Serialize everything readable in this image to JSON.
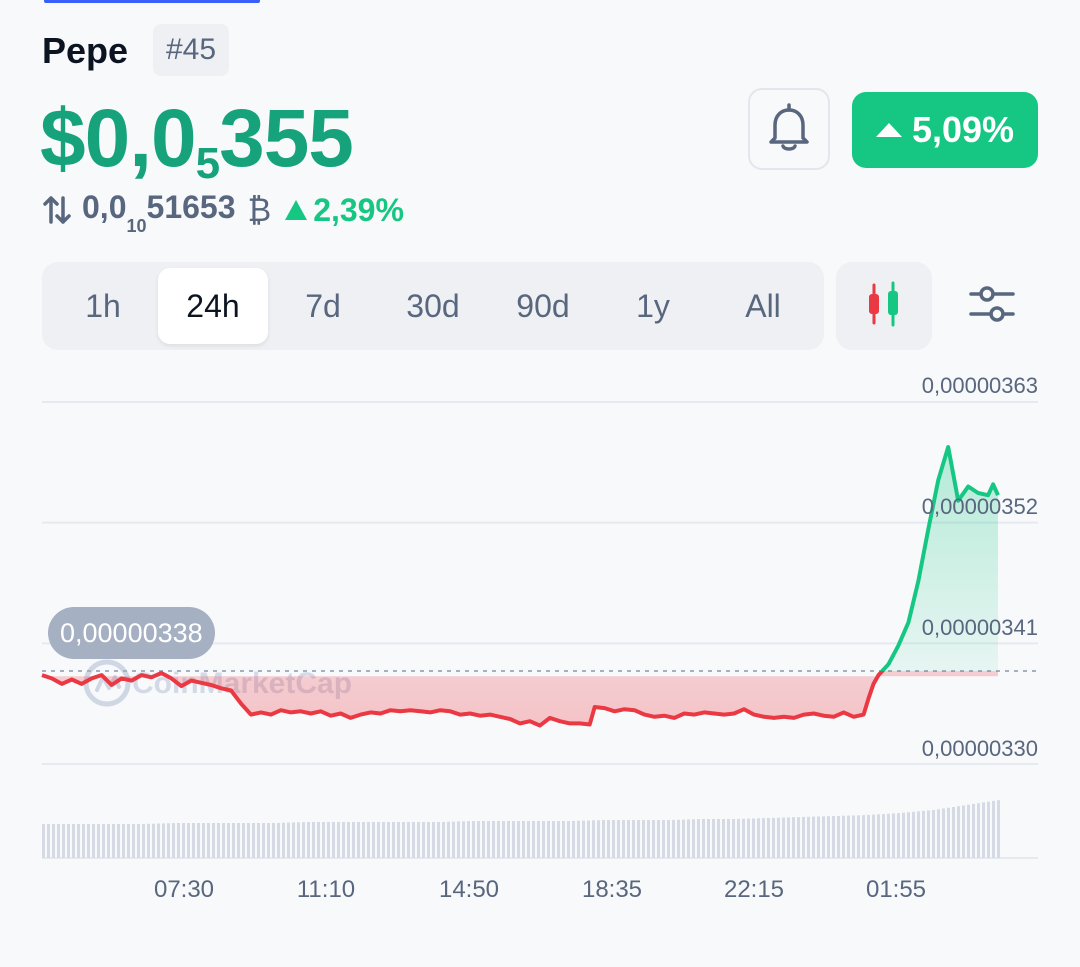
{
  "coin": {
    "name": "Pepe",
    "rank": "#45"
  },
  "price": {
    "prefix": "$0,0",
    "sub_zeros": "5",
    "digits": "355"
  },
  "btc": {
    "prefix": "0,0",
    "sub_zeros": "10",
    "digits": "51653",
    "symbol": "₿",
    "change": "2,39%"
  },
  "change_24h": "5,09%",
  "icons": {
    "bell": "bell-icon",
    "swap": "swap-arrows-icon",
    "candle": "candlestick-icon",
    "settings": "sliders-icon"
  },
  "tabs": [
    {
      "label": "1h",
      "active": false
    },
    {
      "label": "24h",
      "active": true
    },
    {
      "label": "7d",
      "active": false
    },
    {
      "label": "30d",
      "active": false
    },
    {
      "label": "90d",
      "active": false
    },
    {
      "label": "1y",
      "active": false
    },
    {
      "label": "All",
      "active": false
    }
  ],
  "colors": {
    "up": "#16c784",
    "down": "#ea3943",
    "price_text": "#16a37c",
    "accent": "#3861fb"
  },
  "chart_data": {
    "type": "line",
    "reference_price": 3.38e-06,
    "reference_label": "0,00000338",
    "watermark": "CoinMarketCap",
    "y_ticks": [
      "0,00000363",
      "0,00000352",
      "0,00000341",
      "0,00000330"
    ],
    "y_tick_values": [
      3.63e-06,
      3.52e-06,
      3.41e-06,
      3.3e-06
    ],
    "x_ticks": [
      "07:30",
      "11:10",
      "14:50",
      "18:35",
      "22:15",
      "01:55"
    ],
    "x_tick_hours": [
      7.5,
      11.1667,
      14.8333,
      18.5833,
      22.25,
      25.9167
    ],
    "x_range_hours": [
      4.833,
      28.833
    ],
    "ylim": [
      3.3e-06,
      3.63e-06
    ],
    "series": [
      {
        "points": [
          [
            4.833,
            3.381
          ],
          [
            5.07,
            3.378
          ],
          [
            5.31,
            3.373
          ],
          [
            5.55,
            3.377
          ],
          [
            5.79,
            3.373
          ],
          [
            6.03,
            3.378
          ],
          [
            6.27,
            3.381
          ],
          [
            6.51,
            3.372
          ],
          [
            6.75,
            3.378
          ],
          [
            6.99,
            3.376
          ],
          [
            7.23,
            3.381
          ],
          [
            7.47,
            3.379
          ],
          [
            7.71,
            3.383
          ],
          [
            7.95,
            3.378
          ],
          [
            8.19,
            3.371
          ],
          [
            8.43,
            3.376
          ],
          [
            8.67,
            3.374
          ],
          [
            8.91,
            3.372
          ],
          [
            9.15,
            3.369
          ],
          [
            9.39,
            3.367
          ],
          [
            9.63,
            3.355
          ],
          [
            9.87,
            3.345
          ],
          [
            10.11,
            3.347
          ],
          [
            10.35,
            3.345
          ],
          [
            10.59,
            3.349
          ],
          [
            10.83,
            3.347
          ],
          [
            11.07,
            3.348
          ],
          [
            11.31,
            3.346
          ],
          [
            11.55,
            3.348
          ],
          [
            11.79,
            3.344
          ],
          [
            12.03,
            3.346
          ],
          [
            12.27,
            3.342
          ],
          [
            12.51,
            3.345
          ],
          [
            12.75,
            3.347
          ],
          [
            12.99,
            3.346
          ],
          [
            13.23,
            3.349
          ],
          [
            13.47,
            3.348
          ],
          [
            13.71,
            3.349
          ],
          [
            13.95,
            3.348
          ],
          [
            14.19,
            3.347
          ],
          [
            14.43,
            3.349
          ],
          [
            14.67,
            3.348
          ],
          [
            14.91,
            3.345
          ],
          [
            15.15,
            3.346
          ],
          [
            15.39,
            3.344
          ],
          [
            15.63,
            3.345
          ],
          [
            15.87,
            3.343
          ],
          [
            16.11,
            3.341
          ],
          [
            16.35,
            3.337
          ],
          [
            16.59,
            3.339
          ],
          [
            16.83,
            3.335
          ],
          [
            17.07,
            3.342
          ],
          [
            17.31,
            3.339
          ],
          [
            17.55,
            3.337
          ],
          [
            17.79,
            3.337
          ],
          [
            18.03,
            3.336
          ],
          [
            18.15,
            3.352
          ],
          [
            18.39,
            3.351
          ],
          [
            18.63,
            3.348
          ],
          [
            18.87,
            3.35
          ],
          [
            19.11,
            3.349
          ],
          [
            19.35,
            3.345
          ],
          [
            19.59,
            3.343
          ],
          [
            19.83,
            3.344
          ],
          [
            20.07,
            3.342
          ],
          [
            20.31,
            3.346
          ],
          [
            20.55,
            3.345
          ],
          [
            20.79,
            3.347
          ],
          [
            21.03,
            3.346
          ],
          [
            21.27,
            3.345
          ],
          [
            21.51,
            3.346
          ],
          [
            21.75,
            3.35
          ],
          [
            21.99,
            3.345
          ],
          [
            22.23,
            3.343
          ],
          [
            22.47,
            3.342
          ],
          [
            22.71,
            3.343
          ],
          [
            22.95,
            3.342
          ],
          [
            23.19,
            3.345
          ],
          [
            23.43,
            3.346
          ],
          [
            23.67,
            3.344
          ],
          [
            23.91,
            3.343
          ],
          [
            24.15,
            3.347
          ],
          [
            24.39,
            3.343
          ],
          [
            24.63,
            3.345
          ],
          [
            24.75,
            3.36
          ],
          [
            24.87,
            3.373
          ],
          [
            24.99,
            3.381
          ],
          [
            25.23,
            3.391
          ],
          [
            25.47,
            3.408
          ],
          [
            25.71,
            3.429
          ],
          [
            25.95,
            3.467
          ],
          [
            26.19,
            3.514
          ],
          [
            26.43,
            3.559
          ],
          [
            26.67,
            3.589
          ],
          [
            26.91,
            3.54
          ],
          [
            27.15,
            3.553
          ],
          [
            27.39,
            3.547
          ],
          [
            27.63,
            3.545
          ],
          [
            27.75,
            3.555
          ],
          [
            27.87,
            3.545
          ]
        ]
      }
    ],
    "volume": [
      0.34,
      0.34,
      0.34,
      0.34,
      0.35,
      0.35,
      0.35,
      0.35,
      0.36,
      0.36,
      0.36,
      0.36,
      0.36,
      0.37,
      0.37,
      0.37,
      0.37,
      0.38,
      0.38,
      0.38,
      0.39,
      0.39,
      0.4,
      0.41,
      0.42,
      0.43,
      0.45,
      0.48,
      0.53,
      0.58
    ]
  }
}
